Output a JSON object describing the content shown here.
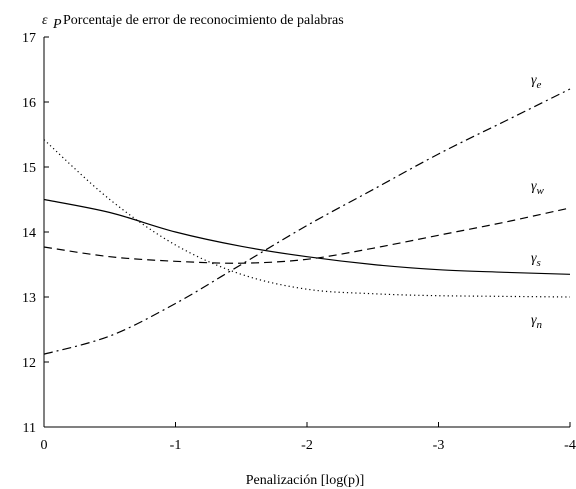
{
  "chart_data": {
    "type": "line",
    "title": "Porcentaje de error de reconocimiento de palabras",
    "ylabel_symbol": "ε",
    "ylabel_subscript": "P",
    "xlabel": "Penalización [log(p)]",
    "xlim": [
      0,
      -4
    ],
    "ylim": [
      11,
      17
    ],
    "x_ticks": [
      0,
      -1,
      -2,
      -3,
      -4
    ],
    "x_tick_labels": [
      "0",
      "-1",
      "-2",
      "-3",
      "-4"
    ],
    "y_ticks": [
      11,
      12,
      13,
      14,
      15,
      16,
      17
    ],
    "y_tick_labels": [
      "11",
      "12",
      "13",
      "14",
      "15",
      "16",
      "17"
    ],
    "grid": false,
    "x": [
      0,
      -0.5,
      -1,
      -1.5,
      -2,
      -2.5,
      -3,
      -3.5,
      -4
    ],
    "series": [
      {
        "name": "γe",
        "symbol": "γ",
        "sub": "e",
        "dash": "dashdot",
        "values": [
          12.12,
          12.4,
          12.9,
          13.5,
          14.1,
          14.65,
          15.2,
          15.7,
          16.2
        ]
      },
      {
        "name": "γw",
        "symbol": "γ",
        "sub": "w",
        "dash": "dashed",
        "values": [
          13.77,
          13.62,
          13.55,
          13.52,
          13.58,
          13.75,
          13.95,
          14.15,
          14.37
        ]
      },
      {
        "name": "γs",
        "symbol": "γ",
        "sub": "s",
        "dash": "solid",
        "values": [
          14.5,
          14.3,
          14.0,
          13.78,
          13.62,
          13.5,
          13.42,
          13.38,
          13.35
        ]
      },
      {
        "name": "γn",
        "symbol": "γ",
        "sub": "n",
        "dash": "dotted",
        "values": [
          15.42,
          14.5,
          13.8,
          13.35,
          13.12,
          13.05,
          13.02,
          13.01,
          13.0
        ]
      }
    ]
  }
}
